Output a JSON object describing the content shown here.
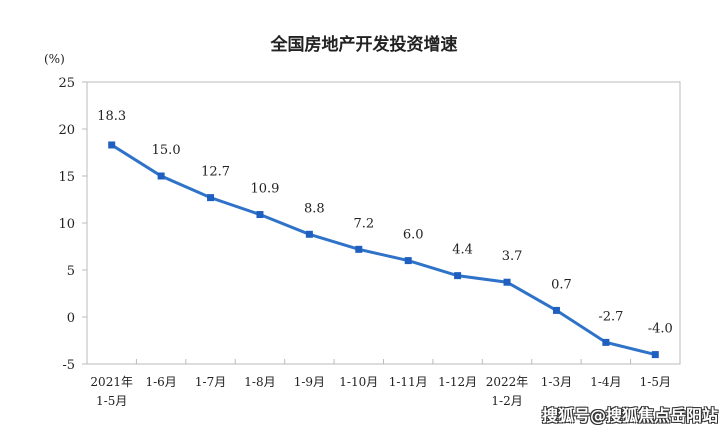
{
  "chart_data": {
    "type": "line",
    "title": "全国房地产开发投资增速",
    "ylabel": "(%)",
    "xlabel": "",
    "ylim": [
      -5,
      25
    ],
    "yticks": [
      25,
      20,
      15,
      10,
      5,
      0,
      -5
    ],
    "categories": [
      [
        "2021年",
        "1-5月"
      ],
      [
        "1-6月"
      ],
      [
        "1-7月"
      ],
      [
        "1-8月"
      ],
      [
        "1-9月"
      ],
      [
        "1-10月"
      ],
      [
        "1-11月"
      ],
      [
        "1-12月"
      ],
      [
        "2022年",
        "1-2月"
      ],
      [
        "1-3月"
      ],
      [
        "1-4月"
      ],
      [
        "1-5月"
      ]
    ],
    "series": [
      {
        "name": "全国房地产开发投资增速",
        "values": [
          18.3,
          15.0,
          12.7,
          10.9,
          8.8,
          7.2,
          6.0,
          4.4,
          3.7,
          0.7,
          -2.7,
          -4.0
        ],
        "labels": [
          "18.3",
          "15.0",
          "12.7",
          "10.9",
          "8.8",
          "7.2",
          "6.0",
          "4.4",
          "3.7",
          "0.7",
          "-2.7",
          "-4.0"
        ],
        "color": "#2f73c9"
      }
    ],
    "grid": false
  },
  "watermark": "搜狐号@搜狐焦点岳阳站"
}
